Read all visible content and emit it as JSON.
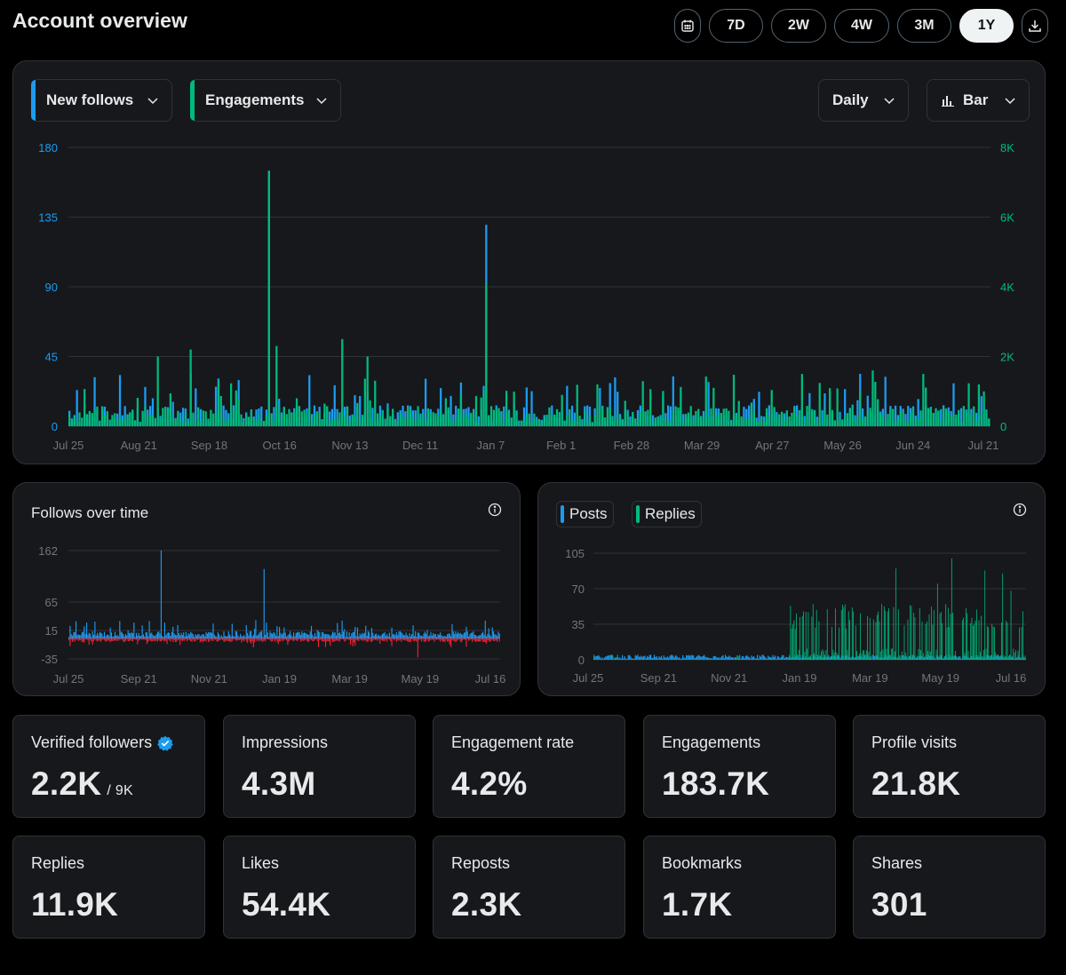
{
  "header": {
    "title": "Account overview",
    "ranges": [
      "7D",
      "2W",
      "4W",
      "3M",
      "1Y"
    ],
    "active_range": "1Y"
  },
  "main_chart": {
    "metric_left": "New follows",
    "metric_right": "Engagements",
    "interval": "Daily",
    "chart_type": "Bar"
  },
  "follows_card": {
    "title": "Follows over time"
  },
  "posts_card": {
    "legend_posts": "Posts",
    "legend_replies": "Replies"
  },
  "stats_row1": [
    {
      "label": "Verified followers",
      "value": "2.2K",
      "sub": "/ 9K"
    },
    {
      "label": "Impressions",
      "value": "4.3M"
    },
    {
      "label": "Engagement rate",
      "value": "4.2%"
    },
    {
      "label": "Engagements",
      "value": "183.7K"
    },
    {
      "label": "Profile visits",
      "value": "21.8K"
    }
  ],
  "stats_row2": [
    {
      "label": "Replies",
      "value": "11.9K"
    },
    {
      "label": "Likes",
      "value": "54.4K"
    },
    {
      "label": "Reposts",
      "value": "2.3K"
    },
    {
      "label": "Bookmarks",
      "value": "1.7K"
    },
    {
      "label": "Shares",
      "value": "301"
    }
  ],
  "colors": {
    "blue": "#1d9bf0",
    "green": "#00ba7c",
    "red": "#f4212e",
    "grid": "#2f3336",
    "tick": "#71767b"
  },
  "chart_data": [
    {
      "type": "bar",
      "y_left": {
        "ticks": [
          "0",
          "45",
          "90",
          "135",
          "180"
        ],
        "ylim": [
          0,
          180
        ],
        "color": "blue"
      },
      "y_right": {
        "ticks": [
          "0",
          "2K",
          "4K",
          "6K",
          "8K"
        ],
        "ylim": [
          0,
          8000
        ],
        "color": "green"
      },
      "x_ticks": [
        "Jul 25",
        "Aug 21",
        "Sep 18",
        "Oct 16",
        "Nov 13",
        "Dec 11",
        "Jan 7",
        "Feb 1",
        "Feb 28",
        "Mar 29",
        "Apr 27",
        "May 26",
        "Jun 24",
        "Jul 21"
      ],
      "series": [
        {
          "name": "New follows",
          "axis": "left",
          "peaks": [
            [
              79,
              165
            ],
            [
              165,
              130
            ],
            [
              181,
              25
            ],
            [
              235,
              20
            ]
          ],
          "baseline": 8
        },
        {
          "name": "Engagements",
          "axis": "right",
          "peaks": [
            [
              35,
              2000
            ],
            [
              48,
              2200
            ],
            [
              79,
              7300
            ],
            [
              82,
              2300
            ],
            [
              108,
              2500
            ],
            [
              118,
              2000
            ],
            [
              165,
              4100
            ],
            [
              195,
              900
            ],
            [
              255,
              1100
            ],
            [
              290,
              1500
            ],
            [
              318,
              1600
            ],
            [
              338,
              1500
            ],
            [
              360,
              1200
            ],
            [
              362,
              1000
            ]
          ],
          "baseline": 350
        }
      ]
    },
    {
      "type": "bar",
      "y_ticks": [
        "-35",
        "15",
        "65",
        "162"
      ],
      "x_ticks": [
        "Jul 25",
        "Sep 21",
        "Nov 21",
        "Jan 19",
        "Mar 19",
        "May 19",
        "Jul 16"
      ],
      "series": [
        {
          "name": "Follows",
          "color": "blue",
          "peaks": [
            [
              78,
              162
            ],
            [
              165,
              128
            ],
            [
              35,
              20
            ]
          ],
          "baseline": 8
        },
        {
          "name": "Unfollows",
          "color": "red",
          "peaks": [
            [
              295,
              -35
            ]
          ],
          "baseline": -4
        }
      ]
    },
    {
      "type": "bar",
      "y_ticks": [
        "0",
        "35",
        "70",
        "105"
      ],
      "ylim": [
        0,
        105
      ],
      "x_ticks": [
        "Jul 25",
        "Sep 21",
        "Nov 21",
        "Jan 19",
        "Mar 19",
        "May 19",
        "Jul 16"
      ],
      "series": [
        {
          "name": "Posts",
          "color": "blue",
          "baseline": 3
        },
        {
          "name": "Replies",
          "color": "green",
          "peaks": [
            [
              255,
              90
            ],
            [
              290,
              75
            ],
            [
              302,
              100
            ],
            [
              330,
              88
            ],
            [
              345,
              85
            ],
            [
              352,
              68
            ]
          ]
        }
      ]
    }
  ]
}
